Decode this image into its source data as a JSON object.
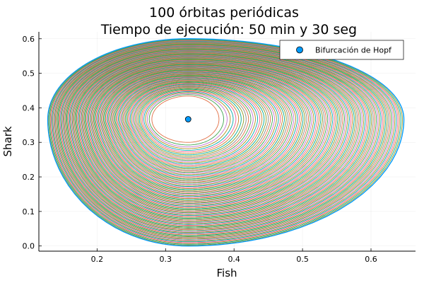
{
  "chart_data": {
    "type": "line",
    "title_line1": "100 órbitas periódicas",
    "title_line2": "Tiempo de ejecución: 50 min y 30 seg",
    "xlabel": "Fish",
    "ylabel": "Shark",
    "xlim": [
      0.115,
      0.665
    ],
    "ylim": [
      -0.015,
      0.62
    ],
    "x_ticks": [
      0.2,
      0.3,
      0.4,
      0.5,
      0.6
    ],
    "x_tick_labels": [
      "0.2",
      "0.3",
      "0.4",
      "0.5",
      "0.6"
    ],
    "y_ticks": [
      0.0,
      0.1,
      0.2,
      0.3,
      0.4,
      0.5,
      0.6
    ],
    "y_tick_labels": [
      "0.0",
      "0.1",
      "0.2",
      "0.3",
      "0.4",
      "0.5",
      "0.6"
    ],
    "grid": true,
    "legend_position": "top-right",
    "series": [
      {
        "name": "Bifurcación de Hopf",
        "kind": "scatter",
        "x": [
          0.333
        ],
        "y": [
          0.367
        ],
        "color": "#009AFA"
      }
    ],
    "orbits": {
      "count": 100,
      "center": [
        0.333,
        0.367
      ],
      "innermost": {
        "x_min": 0.28,
        "x_max": 0.378,
        "y_min": 0.3,
        "y_max": 0.434
      },
      "outermost": {
        "x_min": 0.128,
        "x_max": 0.648,
        "y_min": 0.0,
        "y_max": 0.6
      },
      "colors": [
        "#E26F46",
        "#3EA44E",
        "#C271D2",
        "#AC8D18",
        "#00A9AD",
        "#ED5E93",
        "#C68225",
        "#00A98D",
        "#8E971E",
        "#888888"
      ]
    }
  }
}
